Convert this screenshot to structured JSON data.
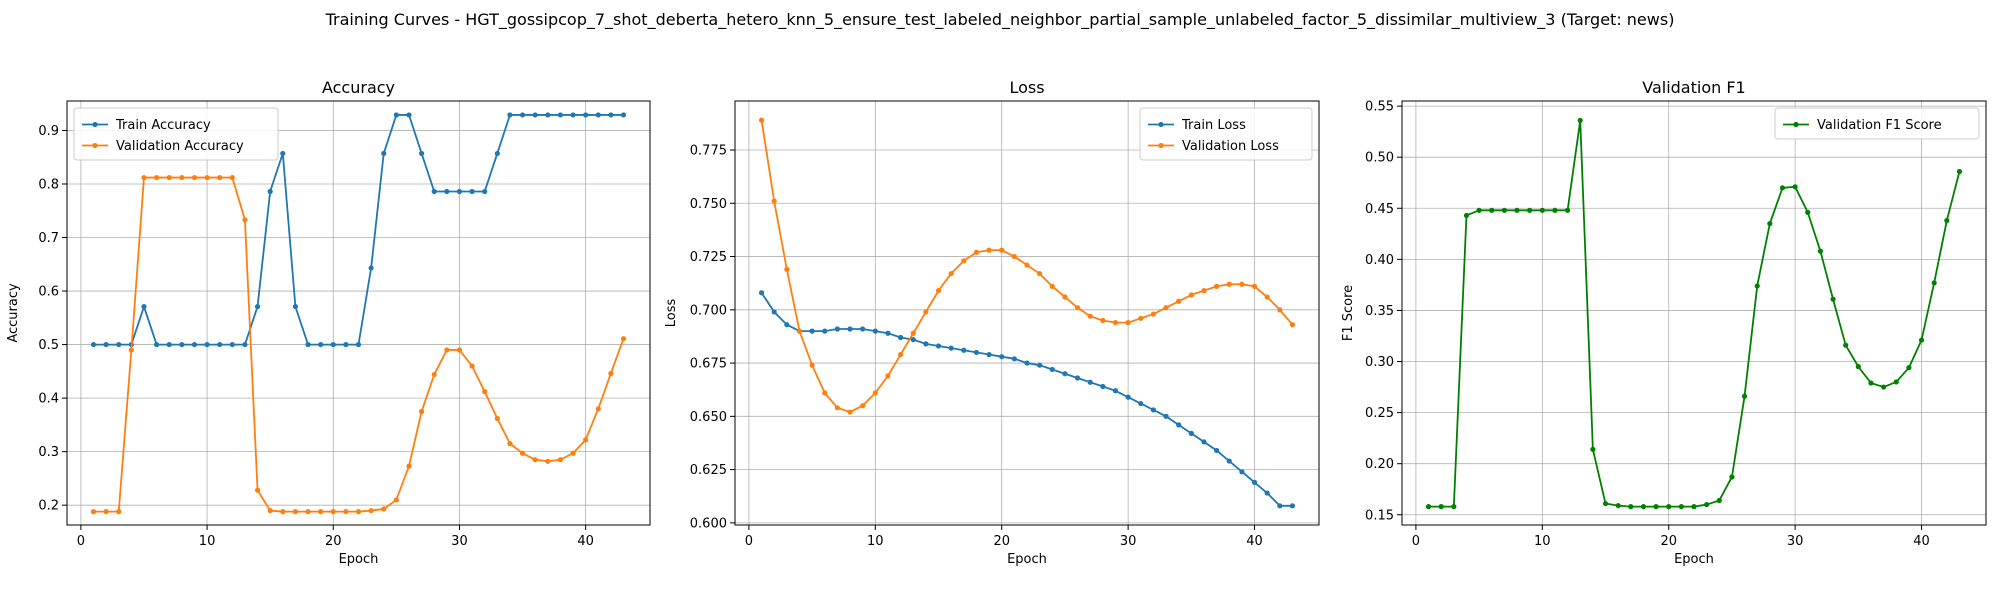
{
  "figure": {
    "suptitle": "Training Curves - HGT_gossipcop_7_shot_deberta_hetero_knn_5_ensure_test_labeled_neighbor_partial_sample_unlabeled_factor_5_dissimilar_multiview_3 (Target: news)"
  },
  "chart_data": [
    {
      "type": "line",
      "title": "Accuracy",
      "xlabel": "Epoch",
      "ylabel": "Accuracy",
      "xlim": [
        -1.1,
        45.1
      ],
      "ylim": [
        0.163,
        0.955
      ],
      "xticks": [
        0,
        10,
        20,
        30,
        40
      ],
      "yticks": [
        0.2,
        0.3,
        0.4,
        0.5,
        0.6,
        0.7,
        0.8,
        0.9
      ],
      "ytick_labels": [
        "0.2",
        "0.3",
        "0.4",
        "0.5",
        "0.6",
        "0.7",
        "0.8",
        "0.9"
      ],
      "grid": true,
      "legend": "top-left",
      "x": [
        1,
        2,
        3,
        4,
        5,
        6,
        7,
        8,
        9,
        10,
        11,
        12,
        13,
        14,
        15,
        16,
        17,
        18,
        19,
        20,
        21,
        22,
        23,
        24,
        25,
        26,
        27,
        28,
        29,
        30,
        31,
        32,
        33,
        34,
        35,
        36,
        37,
        38,
        39,
        40,
        41,
        42,
        43
      ],
      "series": [
        {
          "name": "Train Accuracy",
          "color": "#1f77b4",
          "values": [
            0.5,
            0.5,
            0.5,
            0.5,
            0.571,
            0.5,
            0.5,
            0.5,
            0.5,
            0.5,
            0.5,
            0.5,
            0.5,
            0.571,
            0.786,
            0.857,
            0.571,
            0.5,
            0.5,
            0.5,
            0.5,
            0.5,
            0.643,
            0.857,
            0.929,
            0.929,
            0.857,
            0.786,
            0.786,
            0.786,
            0.786,
            0.786,
            0.857,
            0.929,
            0.929,
            0.929,
            0.929,
            0.929,
            0.929,
            0.929,
            0.929,
            0.929,
            0.929
          ]
        },
        {
          "name": "Validation Accuracy",
          "color": "#ff7f0e",
          "values": [
            0.188,
            0.188,
            0.188,
            0.49,
            0.812,
            0.812,
            0.812,
            0.812,
            0.812,
            0.812,
            0.812,
            0.812,
            0.733,
            0.228,
            0.19,
            0.188,
            0.188,
            0.188,
            0.188,
            0.188,
            0.188,
            0.188,
            0.19,
            0.193,
            0.21,
            0.273,
            0.375,
            0.444,
            0.49,
            0.49,
            0.46,
            0.412,
            0.362,
            0.315,
            0.297,
            0.285,
            0.282,
            0.285,
            0.297,
            0.322,
            0.38,
            0.446,
            0.511
          ]
        }
      ]
    },
    {
      "type": "line",
      "title": "Loss",
      "xlabel": "Epoch",
      "ylabel": "Loss",
      "xlim": [
        -1.1,
        45.1
      ],
      "ylim": [
        0.599,
        0.798
      ],
      "xticks": [
        0,
        10,
        20,
        30,
        40
      ],
      "yticks": [
        0.6,
        0.625,
        0.65,
        0.675,
        0.7,
        0.725,
        0.75,
        0.775
      ],
      "ytick_labels": [
        "0.600",
        "0.625",
        "0.650",
        "0.675",
        "0.700",
        "0.725",
        "0.750",
        "0.775"
      ],
      "grid": true,
      "legend": "top-right",
      "x": [
        1,
        2,
        3,
        4,
        5,
        6,
        7,
        8,
        9,
        10,
        11,
        12,
        13,
        14,
        15,
        16,
        17,
        18,
        19,
        20,
        21,
        22,
        23,
        24,
        25,
        26,
        27,
        28,
        29,
        30,
        31,
        32,
        33,
        34,
        35,
        36,
        37,
        38,
        39,
        40,
        41,
        42,
        43
      ],
      "series": [
        {
          "name": "Train Loss",
          "color": "#1f77b4",
          "values": [
            0.708,
            0.699,
            0.693,
            0.69,
            0.69,
            0.69,
            0.691,
            0.691,
            0.691,
            0.69,
            0.689,
            0.687,
            0.686,
            0.684,
            0.683,
            0.682,
            0.681,
            0.68,
            0.679,
            0.678,
            0.677,
            0.675,
            0.674,
            0.672,
            0.67,
            0.668,
            0.666,
            0.664,
            0.662,
            0.659,
            0.656,
            0.653,
            0.65,
            0.646,
            0.642,
            0.638,
            0.634,
            0.629,
            0.624,
            0.619,
            0.614,
            0.608,
            0.608
          ]
        },
        {
          "name": "Validation Loss",
          "color": "#ff7f0e",
          "values": [
            0.789,
            0.751,
            0.719,
            0.69,
            0.674,
            0.661,
            0.654,
            0.652,
            0.655,
            0.661,
            0.669,
            0.679,
            0.689,
            0.699,
            0.709,
            0.717,
            0.723,
            0.727,
            0.728,
            0.728,
            0.725,
            0.721,
            0.717,
            0.711,
            0.706,
            0.701,
            0.697,
            0.695,
            0.694,
            0.694,
            0.696,
            0.698,
            0.701,
            0.704,
            0.707,
            0.709,
            0.711,
            0.712,
            0.712,
            0.711,
            0.706,
            0.7,
            0.693
          ]
        }
      ]
    },
    {
      "type": "line",
      "title": "Validation F1",
      "xlabel": "Epoch",
      "ylabel": "F1 Score",
      "xlim": [
        -1.1,
        45.1
      ],
      "ylim": [
        0.14,
        0.555
      ],
      "xticks": [
        0,
        10,
        20,
        30,
        40
      ],
      "yticks": [
        0.15,
        0.2,
        0.25,
        0.3,
        0.35,
        0.4,
        0.45,
        0.5,
        0.55
      ],
      "ytick_labels": [
        "0.15",
        "0.20",
        "0.25",
        "0.30",
        "0.35",
        "0.40",
        "0.45",
        "0.50",
        "0.55"
      ],
      "grid": true,
      "legend": "top-right",
      "x": [
        1,
        2,
        3,
        4,
        5,
        6,
        7,
        8,
        9,
        10,
        11,
        12,
        13,
        14,
        15,
        16,
        17,
        18,
        19,
        20,
        21,
        22,
        23,
        24,
        25,
        26,
        27,
        28,
        29,
        30,
        31,
        32,
        33,
        34,
        35,
        36,
        37,
        38,
        39,
        40,
        41,
        42,
        43
      ],
      "series": [
        {
          "name": "Validation F1 Score",
          "color": "#008000",
          "values": [
            0.158,
            0.158,
            0.158,
            0.443,
            0.448,
            0.448,
            0.448,
            0.448,
            0.448,
            0.448,
            0.448,
            0.448,
            0.536,
            0.214,
            0.161,
            0.159,
            0.158,
            0.158,
            0.158,
            0.158,
            0.158,
            0.158,
            0.16,
            0.164,
            0.187,
            0.266,
            0.374,
            0.435,
            0.47,
            0.471,
            0.446,
            0.408,
            0.361,
            0.316,
            0.295,
            0.279,
            0.275,
            0.28,
            0.294,
            0.321,
            0.377,
            0.438,
            0.486
          ]
        }
      ]
    }
  ]
}
